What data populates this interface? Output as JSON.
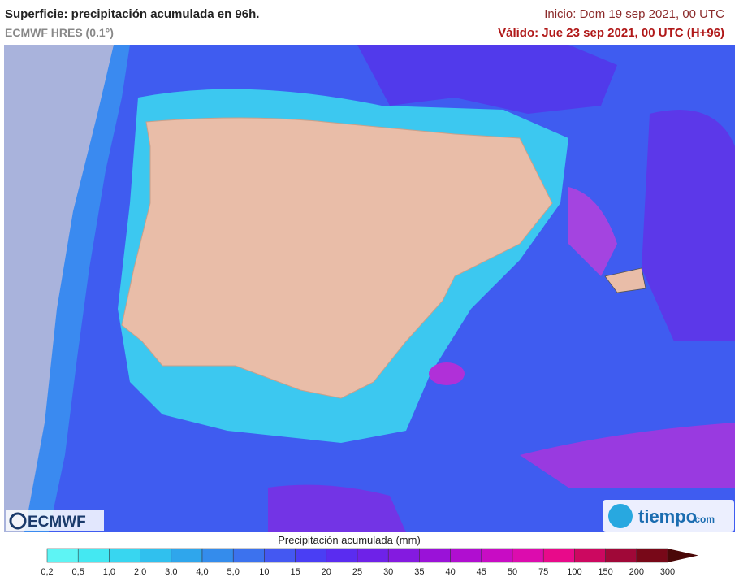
{
  "header": {
    "title": "Superficie: precipitación acumulada en 96h.",
    "model": "ECMWF HRES (0.1°)",
    "init": "Inicio: Dom 19 sep 2021, 00 UTC",
    "valid": "Válido: Jue 23 sep 2021, 00 UTC (H+96)"
  },
  "logos": {
    "left": "ECMWF",
    "right": "tiempo",
    "right_suffix": ".com"
  },
  "legend": {
    "title": "Precipitación acumulada (mm)",
    "labels": [
      "0,2",
      "0,5",
      "1,0",
      "2,0",
      "3,0",
      "4,0",
      "5,0",
      "10",
      "15",
      "20",
      "25",
      "30",
      "35",
      "40",
      "45",
      "50",
      "75",
      "100",
      "150",
      "200",
      "300"
    ],
    "colors": [
      "#5ef4f4",
      "#44e8f2",
      "#38d6f0",
      "#30c0ee",
      "#2fa6ec",
      "#348cec",
      "#3c72ee",
      "#4458f2",
      "#4a3ef4",
      "#5a2cf0",
      "#6e22e8",
      "#841ae0",
      "#9a12d8",
      "#b00ed0",
      "#c80cc4",
      "#dc0cae",
      "#e80a8a",
      "#cc0860",
      "#a00838",
      "#780818"
    ],
    "extend_color": "#4a0808"
  }
}
